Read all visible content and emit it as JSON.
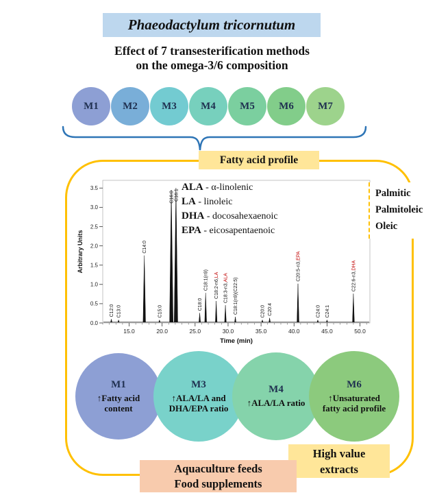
{
  "title": "Phaeodactylum tricornutum",
  "subtitle": {
    "line1": "Effect of 7 transesterification methods",
    "line2": "on the omega-3/6 composition"
  },
  "methods": [
    {
      "label": "M1",
      "color": "#8d9fd4"
    },
    {
      "label": "M2",
      "color": "#79aed8"
    },
    {
      "label": "M3",
      "color": "#73cbd1"
    },
    {
      "label": "M4",
      "color": "#77d0bd"
    },
    {
      "label": "M5",
      "color": "#7bcf9f"
    },
    {
      "label": "M6",
      "color": "#82cd8a"
    },
    {
      "label": "M7",
      "color": "#9dd38c"
    }
  ],
  "fatty_acid_profile_label": "Fatty acid profile",
  "legend": [
    {
      "abbr": "ALA",
      "rest": " - α-linolenic"
    },
    {
      "abbr": "LA",
      "rest": " - linoleic"
    },
    {
      "abbr": "DHA",
      "rest": " - docosahexaenoic"
    },
    {
      "abbr": "EPA",
      "rest": " - eicosapentaenoic"
    }
  ],
  "side_panel": {
    "line1": "Palmitic",
    "line2": "Palmitoleic",
    "line3": "Oleic"
  },
  "chart_data": {
    "type": "line",
    "title": "",
    "xlabel": "Time (min)",
    "ylabel": "Arbitrary Units",
    "xlim": [
      11,
      51.5
    ],
    "ylim": [
      0,
      3.7
    ],
    "xticks": [
      15,
      20,
      25,
      30,
      35,
      40,
      45,
      50
    ],
    "yticks": [
      0,
      0.5,
      1,
      1.5,
      2,
      2.5,
      3,
      3.5
    ],
    "line_color": "#111111",
    "red_label_color": "#c00000",
    "peaks": [
      {
        "t": 12.3,
        "h": 0.1,
        "label": "C12:0",
        "red": ""
      },
      {
        "t": 13.4,
        "h": 0.08,
        "label": "C13:0",
        "red": ""
      },
      {
        "t": 17.3,
        "h": 1.75,
        "label": "C14:0",
        "red": ""
      },
      {
        "t": 19.6,
        "h": 0.08,
        "label": "C15:0",
        "red": ""
      },
      {
        "t": 21.4,
        "h": 3.45,
        "label": "C16:0",
        "red": ""
      },
      {
        "t": 22.1,
        "h": 3.5,
        "label": "C16:1",
        "red": ""
      },
      {
        "t": 25.7,
        "h": 0.26,
        "label": "C18:0",
        "red": ""
      },
      {
        "t": 26.6,
        "h": 0.78,
        "label": "C18:1(n9)",
        "red": ""
      },
      {
        "t": 28.2,
        "h": 0.57,
        "label": "C18:2-n6,",
        "red": "LA"
      },
      {
        "t": 29.6,
        "h": 0.46,
        "label": "C18:3-n3,",
        "red": "ALA"
      },
      {
        "t": 31.1,
        "h": 0.16,
        "label": "C18:1(n9)(C22:5)",
        "red": ""
      },
      {
        "t": 35.2,
        "h": 0.08,
        "label": "C20:0",
        "red": ""
      },
      {
        "t": 36.3,
        "h": 0.13,
        "label": "C20:4",
        "red": ""
      },
      {
        "t": 40.6,
        "h": 1.02,
        "label": "C20:5-n3,",
        "red": "EPA"
      },
      {
        "t": 43.6,
        "h": 0.08,
        "label": "C24:0",
        "red": ""
      },
      {
        "t": 45.0,
        "h": 0.08,
        "label": "C24:1",
        "red": ""
      },
      {
        "t": 49.0,
        "h": 0.76,
        "label": "C22:6-n3,",
        "red": "DHA"
      }
    ]
  },
  "results": [
    {
      "label": "M1",
      "text": "↑Fatty acid content",
      "color": "#8d9fd4"
    },
    {
      "label": "M3",
      "text": "↑ALA/LA and DHA/EPA ratio",
      "color": "#79d2ca"
    },
    {
      "label": "M4",
      "text": "↑ALA/LA ratio",
      "color": "#85d3ab"
    },
    {
      "label": "M6",
      "text": "↑Unsaturated fatty acid profile",
      "color": "#8cca7d"
    }
  ],
  "high_value_box": {
    "line1": "High value",
    "line2": "extracts"
  },
  "applications_box": {
    "line1": "Aquaculture feeds",
    "line2": "Food supplements"
  },
  "colors": {
    "title_bg": "#bdd7ee",
    "yellow_box_bg": "#ffe699",
    "main_border": "#ffc000",
    "peach_box_bg": "#f8cbad",
    "brace": "#2e75b6"
  }
}
